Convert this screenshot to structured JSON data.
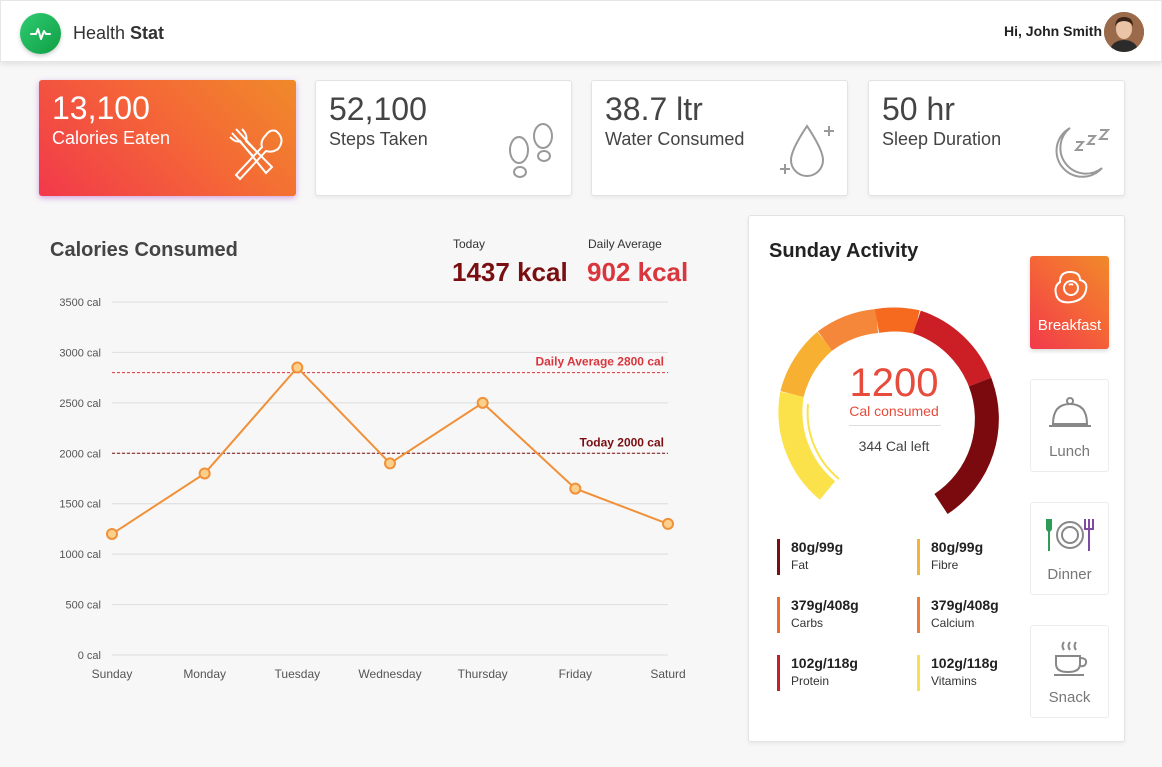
{
  "app": {
    "brand_light": "Health",
    "brand_bold": "Stat",
    "greeting": "Hi, John Smith"
  },
  "colors": {
    "accent": "#f46b35",
    "dark_red": "#7a0f12",
    "red": "#e2394b",
    "line": "#f0913a"
  },
  "stats": [
    {
      "value": "13,100",
      "label": "Calories Eaten",
      "icon": "fork-spoon-icon"
    },
    {
      "value": "52,100",
      "label": "Steps Taken",
      "icon": "footprints-icon"
    },
    {
      "value": "38.7 ltr",
      "label": "Water Consumed",
      "icon": "water-drop-icon"
    },
    {
      "value": "50 hr",
      "label": "Sleep Duration",
      "icon": "moon-sleep-icon"
    }
  ],
  "calories": {
    "title": "Calories Consumed",
    "today_label": "Today",
    "today_value": "1437 kcal",
    "avg_label": "Daily Average",
    "avg_value": "902 kcal"
  },
  "chart_data": {
    "type": "line",
    "title": "Calories Consumed",
    "categories": [
      "Sunday",
      "Monday",
      "Tuesday",
      "Wednesday",
      "Thursday",
      "Friday",
      "Saturd"
    ],
    "values": [
      1200,
      1800,
      2850,
      1900,
      2500,
      1650,
      1300
    ],
    "y_ticks": [
      0,
      500,
      1000,
      1500,
      2000,
      2500,
      3000,
      3500
    ],
    "y_tick_suffix": " cal",
    "ylim": [
      0,
      3500
    ],
    "reference_lines": [
      {
        "label": "Daily Average 2800 cal",
        "value": 2800,
        "color": "#d9363e"
      },
      {
        "label": "Today 2000 cal",
        "value": 2000,
        "color": "#7a0f12"
      }
    ]
  },
  "activity": {
    "title": "Sunday Activity",
    "consumed": "1200",
    "consumed_label": "Cal consumed",
    "left_label": "344 Cal left",
    "nutrients": [
      {
        "value": "80g/99g",
        "label": "Fat",
        "color": "#7a0f12"
      },
      {
        "value": "80g/99g",
        "label": "Fibre",
        "color": "#f4b43a"
      },
      {
        "value": "379g/408g",
        "label": "Carbs",
        "color": "#f06a25"
      },
      {
        "value": "379g/408g",
        "label": "Calcium",
        "color": "#f07a3a"
      },
      {
        "value": "102g/118g",
        "label": "Protein",
        "color": "#c81e2b"
      },
      {
        "value": "102g/118g",
        "label": "Vitamins",
        "color": "#f7e04a"
      }
    ],
    "meals": [
      {
        "label": "Breakfast",
        "icon": "fried-egg-icon"
      },
      {
        "label": "Lunch",
        "icon": "cloche-icon"
      },
      {
        "label": "Dinner",
        "icon": "plate-cutlery-icon"
      },
      {
        "label": "Snack",
        "icon": "coffee-cup-icon"
      }
    ]
  }
}
